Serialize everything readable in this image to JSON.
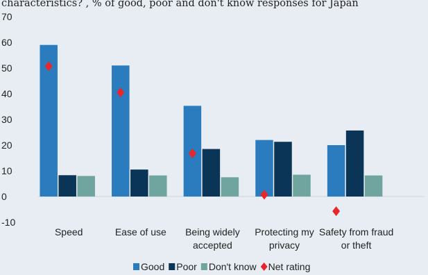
{
  "chart_data": {
    "type": "bar",
    "subtitle": "characteristics? , % of good, poor and don't know responses for Japan",
    "title": "",
    "xlabel": "",
    "ylabel": "",
    "ylim": [
      -10,
      70
    ],
    "yticks": [
      -10,
      0,
      10,
      20,
      30,
      40,
      50,
      60,
      70
    ],
    "grid": false,
    "legend_position": "bottom",
    "categories": [
      [
        "Speed"
      ],
      [
        "Ease of use"
      ],
      [
        "Being widely",
        "accepted"
      ],
      [
        "Protecting my",
        "privacy"
      ],
      [
        "Safety from fraud",
        "or theft"
      ]
    ],
    "series": [
      {
        "name": "Good",
        "type": "bar",
        "color": "#2b7bbf",
        "values": [
          59,
          51,
          35.3,
          22,
          20
        ]
      },
      {
        "name": "Poor",
        "type": "bar",
        "color": "#0b3556",
        "values": [
          8.3,
          10.5,
          18.5,
          21.3,
          25.7
        ]
      },
      {
        "name": "Don't know",
        "type": "bar",
        "color": "#6fa59e",
        "values": [
          8,
          8.2,
          7.5,
          8.5,
          8.2
        ]
      },
      {
        "name": "Net rating",
        "type": "marker",
        "color": "#e8262b",
        "values": [
          50.7,
          40.5,
          16.8,
          0.7,
          -5.7
        ]
      }
    ]
  }
}
